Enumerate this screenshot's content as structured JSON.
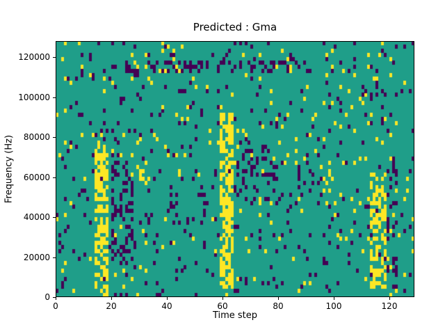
{
  "title": "Predicted : Gma",
  "axes": {
    "xlabel": "Time step",
    "ylabel": "Frequency (Hz)"
  },
  "chart_data": {
    "type": "heatmap",
    "title": "Predicted : Gma",
    "xlabel": "Time step",
    "ylabel": "Frequency (Hz)",
    "xlim": [
      0,
      129
    ],
    "ylim": [
      0,
      128000
    ],
    "x_ticks": [
      0,
      20,
      40,
      60,
      80,
      100,
      120
    ],
    "y_ticks": [
      0,
      20000,
      40000,
      60000,
      80000,
      100000,
      120000
    ],
    "grid": {
      "cols": 129,
      "rows": 64
    },
    "legend": "none",
    "colors": {
      "background": "#1f9e89",
      "high": "#fde725",
      "low": "#440154",
      "axis": "#000000",
      "figure_background": "#ffffff"
    },
    "pattern": {
      "description": "teal field with sparse yellow/purple cells; strong yellow vertical bands near t=15-18, t=60-63, t=113-118; purple clusters near t=21-28 and t=64-80 mid frequencies; purple streak near 115000 Hz",
      "seed": 42,
      "yellow_density": 0.03,
      "purple_density": 0.045,
      "yellow_bands": [
        {
          "x0": 14,
          "x1": 19,
          "y0": 0,
          "y1": 37,
          "density": 0.55
        },
        {
          "x0": 15,
          "x1": 18,
          "y0": 37,
          "y1": 41,
          "density": 0.2
        },
        {
          "x0": 59,
          "x1": 64,
          "y0": 1,
          "y1": 46,
          "density": 0.6
        },
        {
          "x0": 113,
          "x1": 119,
          "y0": 2,
          "y1": 31,
          "density": 0.5
        },
        {
          "x0": 30,
          "x1": 34,
          "y0": 28,
          "y1": 34,
          "density": 0.25
        },
        {
          "x0": 96,
          "x1": 99,
          "y0": 26,
          "y1": 33,
          "density": 0.25
        }
      ],
      "purple_bands": [
        {
          "x0": 20,
          "x1": 28,
          "y0": 8,
          "y1": 36,
          "density": 0.3
        },
        {
          "x0": 64,
          "x1": 79,
          "y0": 24,
          "y1": 38,
          "density": 0.22
        },
        {
          "x0": 86,
          "x1": 93,
          "y0": 25,
          "y1": 34,
          "density": 0.18
        },
        {
          "x0": 119,
          "x1": 123,
          "y0": 4,
          "y1": 36,
          "density": 0.18
        },
        {
          "x0": 25,
          "x1": 95,
          "y0": 56,
          "y1": 59,
          "density": 0.25
        },
        {
          "x0": 40,
          "x1": 55,
          "y0": 18,
          "y1": 26,
          "density": 0.12
        }
      ]
    }
  }
}
